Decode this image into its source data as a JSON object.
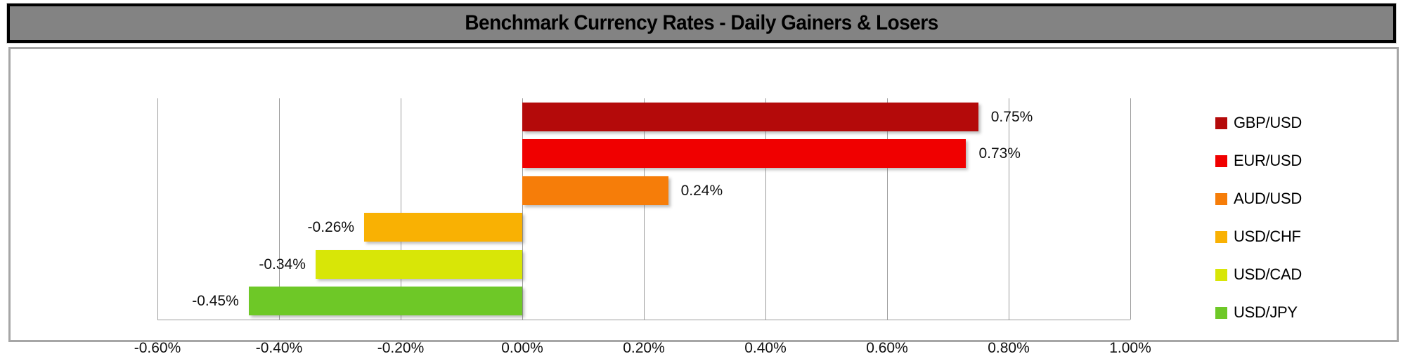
{
  "title": "Benchmark Currency Rates - Daily Gainers & Losers",
  "chart_data": {
    "type": "bar",
    "orientation": "horizontal",
    "title": "Benchmark Currency Rates - Daily Gainers & Losers",
    "categories": [
      "GBP/USD",
      "EUR/USD",
      "AUD/USD",
      "USD/CHF",
      "USD/CAD",
      "USD/JPY"
    ],
    "values": [
      0.75,
      0.73,
      0.24,
      -0.26,
      -0.34,
      -0.45
    ],
    "data_labels": [
      "0.75%",
      "0.73%",
      "0.24%",
      "-0.26%",
      "-0.34%",
      "-0.45%"
    ],
    "colors": [
      "#B40A0A",
      "#F00000",
      "#F67D09",
      "#F9B103",
      "#D8E607",
      "#6EC827"
    ],
    "x_tick_labels": [
      "-0.60%",
      "-0.40%",
      "-0.20%",
      "0.00%",
      "0.20%",
      "0.40%",
      "0.60%",
      "0.80%",
      "1.00%"
    ],
    "xlim": [
      -0.6,
      1.0
    ],
    "xlabel": "",
    "ylabel": "",
    "grid": true,
    "legend_position": "right"
  },
  "colors": {
    "title_bg": "#838383",
    "title_border": "#000000",
    "chart_border": "#a6a6a6",
    "gridline": "#9c9c9c",
    "label_text": "#111111"
  }
}
